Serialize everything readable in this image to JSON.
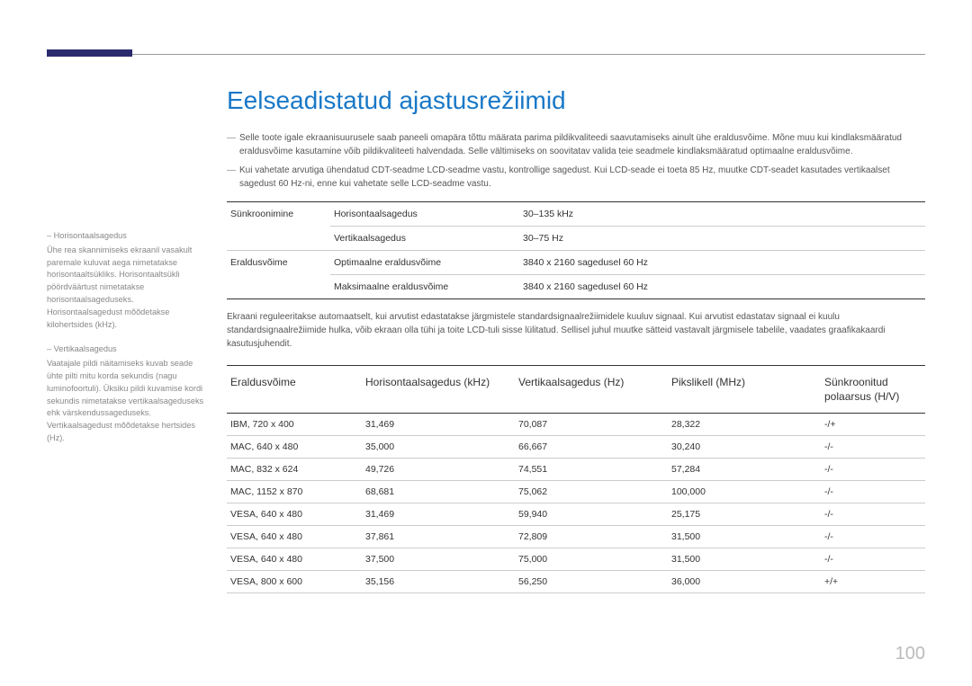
{
  "accent_color": "#2b2a6e",
  "title_color": "#1978c7",
  "page_number": "100",
  "page_title": "Eelseadistatud ajastusrežiimid",
  "notes": [
    "Selle toote igale ekraanisuurusele saab paneeli omapära tõttu määrata parima pildikvaliteedi saavutamiseks ainult ühe eraldusvõime. Mõne muu kui kindlaksmääratud eraldusvõime kasutamine võib pildikvaliteeti halvendada. Selle vältimiseks on soovitatav valida teie seadmele kindlaksmääratud optimaalne eraldusvõime.",
    "Kui vahetate arvutiga ühendatud CDT-seadme LCD-seadme vastu, kontrollige sagedust. Kui LCD-seade ei toeta 85 Hz, muutke CDT-seadet kasutades vertikaalset sagedust 60 Hz-ni, enne kui vahetate selle LCD-seadme vastu."
  ],
  "sidebar": [
    {
      "title": "Horisontaalsagedus",
      "body": "Ühe rea skannimiseks ekraanil vasakult paremale kuluvat aega nimetatakse horisontaaltsükliks. Horisontaaltsükli pöördväärtust nimetatakse horisontaalsageduseks. Horisontaalsagedust mõõdetakse kilohertsides (kHz)."
    },
    {
      "title": "Vertikaalsagedus",
      "body": "Vaatajale pildi näitamiseks kuvab seade ühte pilti mitu korda sekundis (nagu luminofoortuli). Üksiku pildi kuvamise kordi sekundis nimetatakse vertikaalsageduseks ehk värskendussageduseks. Vertikaalsagedust mõõdetakse hertsides (Hz)."
    }
  ],
  "spec_table": [
    {
      "label": "Sünkroonimine",
      "rows": [
        {
          "k": "Horisontaalsagedus",
          "v": "30–135 kHz"
        },
        {
          "k": "Vertikaalsagedus",
          "v": "30–75 Hz"
        }
      ]
    },
    {
      "label": "Eraldusvõime",
      "rows": [
        {
          "k": "Optimaalne eraldusvõime",
          "v": "3840 x 2160 sagedusel 60 Hz"
        },
        {
          "k": "Maksimaalne eraldusvõime",
          "v": "3840 x 2160 sagedusel 60 Hz"
        }
      ]
    }
  ],
  "paragraph": "Ekraani reguleeritakse automaatselt, kui arvutist edastatakse järgmistele standardsignaalrežiimidele kuuluv signaal. Kui arvutist edastatav signaal ei kuulu standardsignaalrežiimide hulka, võib ekraan olla tühi ja toite LCD-tuli sisse lülitatud. Sellisel juhul muutke sätteid vastavalt järgmisele tabelile, vaadates graafikakaardi kasutusjuhendit.",
  "mode_table": {
    "columns": [
      "Eraldusvõime",
      "Horisontaalsagedus (kHz)",
      "Vertikaalsagedus (Hz)",
      "Pikslikell (MHz)",
      "Sünkroonitud polaarsus (H/V)"
    ],
    "rows": [
      [
        "IBM, 720 x 400",
        "31,469",
        "70,087",
        "28,322",
        "-/+"
      ],
      [
        "MAC, 640 x 480",
        "35,000",
        "66,667",
        "30,240",
        "-/-"
      ],
      [
        "MAC, 832 x 624",
        "49,726",
        "74,551",
        "57,284",
        "-/-"
      ],
      [
        "MAC, 1152 x 870",
        "68,681",
        "75,062",
        "100,000",
        "-/-"
      ],
      [
        "VESA, 640 x 480",
        "31,469",
        "59,940",
        "25,175",
        "-/-"
      ],
      [
        "VESA, 640 x 480",
        "37,861",
        "72,809",
        "31,500",
        "-/-"
      ],
      [
        "VESA, 640 x 480",
        "37,500",
        "75,000",
        "31,500",
        "-/-"
      ],
      [
        "VESA, 800 x 600",
        "35,156",
        "56,250",
        "36,000",
        "+/+"
      ]
    ]
  }
}
